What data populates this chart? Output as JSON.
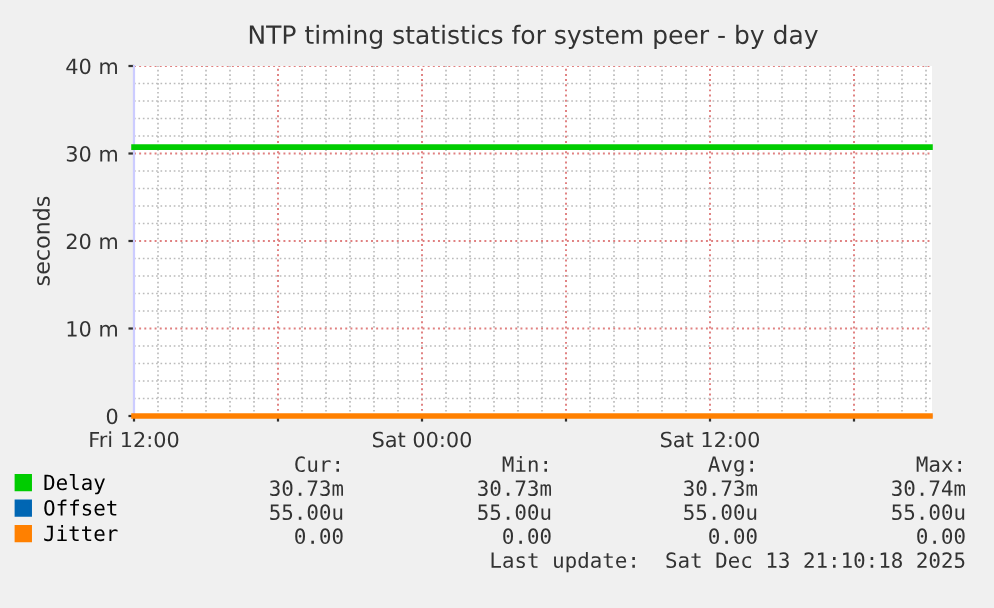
{
  "chart_data": {
    "type": "line",
    "title": "NTP timing statistics for system peer - by day",
    "ylabel": "seconds",
    "x": [
      "2025-12-12T12:00",
      "2025-12-13T21:10"
    ],
    "series": [
      {
        "name": "Delay",
        "color": "#00cc00",
        "values": [
          30.73,
          30.73
        ]
      },
      {
        "name": "Offset",
        "color": "#0066b3",
        "values": [
          null,
          null
        ]
      },
      {
        "name": "Jitter",
        "color": "#ff8000",
        "values": [
          0,
          0
        ]
      }
    ],
    "xlim": [
      "2025-12-12T12:00",
      "2025-12-13T21:15"
    ],
    "xticks": [
      {
        "value": "2025-12-12T12:00",
        "label": "Fri 12:00"
      },
      {
        "value": "2025-12-12T18:00",
        "label": null
      },
      {
        "value": "2025-12-13T00:00",
        "label": "Sat 00:00"
      },
      {
        "value": "2025-12-13T06:00",
        "label": null
      },
      {
        "value": "2025-12-13T12:00",
        "label": "Sat 12:00"
      },
      {
        "value": "2025-12-13T18:00",
        "label": null
      }
    ],
    "ylim": [
      0,
      40
    ],
    "yticks": [
      0,
      {
        "value": 10,
        "label": "10 m"
      },
      {
        "value": 20,
        "label": "20 m"
      },
      {
        "value": 30,
        "label": "30 m"
      },
      {
        "value": 40,
        "label": "40 m"
      }
    ],
    "grid": true,
    "legend": "bottom left",
    "marker": "none",
    "line_style": "solid",
    "annotations": [
      "Cur:",
      "Min:",
      "Avg:",
      "Max:",
      "30.73m",
      "30.73m",
      "30.73m",
      "30.74m",
      "55.00u",
      "55.00u",
      "55.00u",
      "55.00u",
      "0.00",
      "0.00",
      "0.00",
      "0.00",
      "Last update:  Sat Dec 13 21:10:18 2025"
    ]
  }
}
